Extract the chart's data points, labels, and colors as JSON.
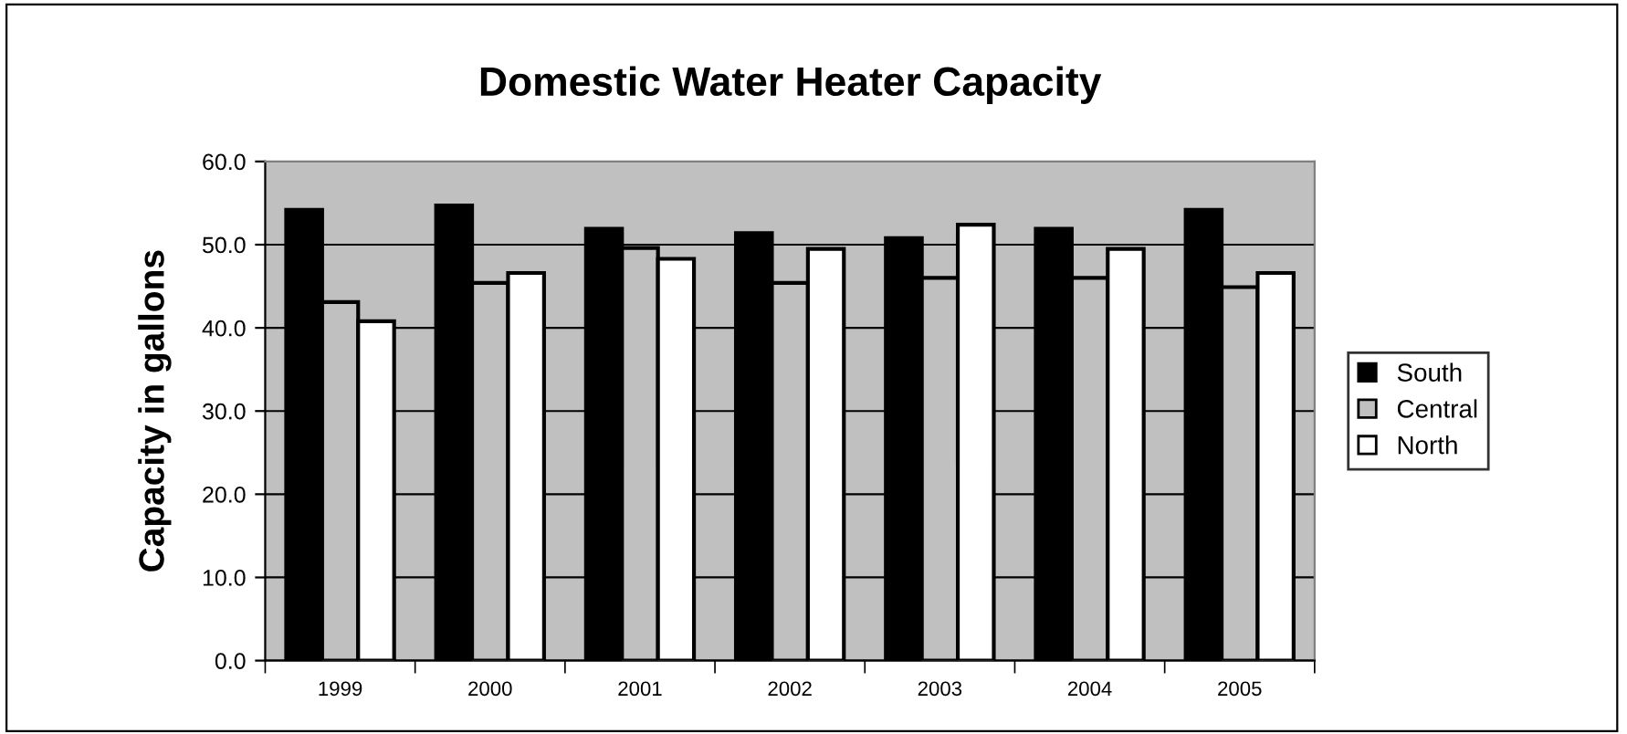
{
  "chart_data": {
    "type": "bar",
    "title": "Domestic Water Heater Capacity",
    "ylabel": "Capacity in gallons",
    "categories": [
      "1999",
      "2000",
      "2001",
      "2002",
      "2003",
      "2004",
      "2005"
    ],
    "series": [
      {
        "name": "South",
        "color": "#000000",
        "values": [
          54.2,
          54.7,
          51.9,
          51.4,
          50.8,
          51.9,
          54.2
        ]
      },
      {
        "name": "Central",
        "color": "#c0c0c0",
        "values": [
          43.1,
          45.4,
          49.6,
          45.4,
          46.0,
          46.0,
          44.9
        ]
      },
      {
        "name": "North",
        "color": "#ffffff",
        "values": [
          40.8,
          46.6,
          48.3,
          49.5,
          52.4,
          49.5,
          46.6
        ]
      }
    ],
    "ylim": [
      0,
      60
    ],
    "yticks": [
      {
        "value": 0,
        "label": "0.0"
      },
      {
        "value": 10,
        "label": "10.0"
      },
      {
        "value": 20,
        "label": "20.0"
      },
      {
        "value": 30,
        "label": "30.0"
      },
      {
        "value": 40,
        "label": "40.0"
      },
      {
        "value": 50,
        "label": "50.0"
      },
      {
        "value": 60,
        "label": "60.0"
      }
    ],
    "grid": "y",
    "legend": "right"
  }
}
